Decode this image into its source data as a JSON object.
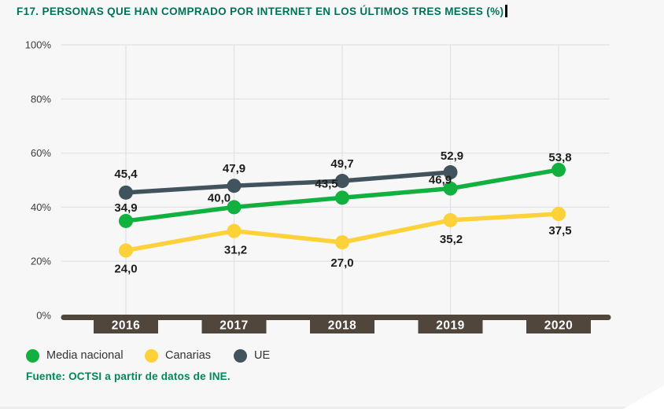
{
  "header": {
    "title": "F17. PERSONAS QUE HAN COMPRADO POR INTERNET EN LOS ÚLTIMOS TRES MESES (%)"
  },
  "footer": {
    "source": "Fuente: OCTSI a partir de datos de INE."
  },
  "chart_data": {
    "type": "line",
    "title": "F17. PERSONAS QUE HAN COMPRADO POR INTERNET EN LOS ÚLTIMOS TRES MESES (%)",
    "categories": [
      "2016",
      "2017",
      "2018",
      "2019",
      "2020"
    ],
    "series": [
      {
        "name": "Media nacional",
        "color": "#12b13f",
        "values": [
          34.9,
          40.0,
          43.5,
          46.9,
          53.8
        ],
        "point_labels": [
          "34,9",
          "40,0",
          "43,5",
          "46,9",
          "53,8"
        ]
      },
      {
        "name": "Canarias",
        "color": "#fdd13a",
        "values": [
          24.0,
          31.2,
          27.0,
          35.2,
          37.5
        ],
        "point_labels": [
          "24,0",
          "31,2",
          "27,0",
          "35,2",
          "37,5"
        ]
      },
      {
        "name": "UE",
        "color": "#41535c",
        "values": [
          45.4,
          47.9,
          49.7,
          52.9,
          null
        ],
        "point_labels": [
          "45,4",
          "47,9",
          "49,7",
          "52,9",
          null
        ]
      }
    ],
    "y_axis": {
      "ticks": [
        "100%",
        "80%",
        "60%",
        "40%",
        "20%",
        "0%"
      ],
      "tick_values": [
        100,
        80,
        60,
        40,
        20,
        0
      ],
      "min": 0,
      "max": 100
    },
    "grid": true,
    "legend_position": "bottom",
    "source": "Fuente: OCTSI a partir de datos de INE."
  },
  "colors": {
    "background": "#f7f7f7",
    "title_green": "#00725a",
    "source_green": "#00885a",
    "grid": "#e3e3e3",
    "axis_bar": "#51463c",
    "year_label_text": "#ffffff",
    "data_label": "#1d1d1b",
    "tick_label": "#3c3c3c",
    "legend_label": "#333333",
    "caret": "#0a0a0a"
  }
}
